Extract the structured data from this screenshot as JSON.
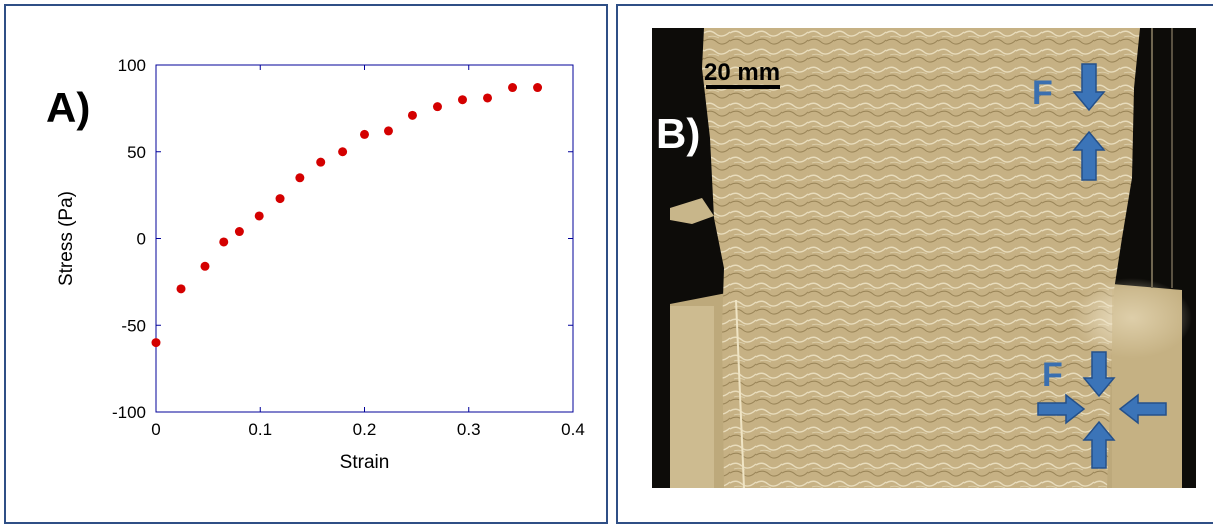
{
  "panel_a": {
    "label": "A)"
  },
  "panel_b": {
    "label": "B)",
    "scale_bar": "20 mm",
    "force_label_top": "F",
    "force_label_bottom": "F",
    "arrow_color": "#3b74b8",
    "label_color": "#3a6fb0"
  },
  "chart_data": {
    "type": "scatter",
    "xlabel": "Strain",
    "ylabel": "Stress (Pa)",
    "xlim": [
      0,
      0.4
    ],
    "ylim": [
      -100,
      100
    ],
    "xticks": [
      0,
      0.1,
      0.2,
      0.3,
      0.4
    ],
    "xtick_labels": [
      "0",
      "0.1",
      "0.2",
      "0.3",
      "0.4"
    ],
    "yticks": [
      -100,
      -50,
      0,
      50,
      100
    ],
    "ytick_labels": [
      "-100",
      "-50",
      "0",
      "50",
      "100"
    ],
    "grid": false,
    "marker_color": "#d40000",
    "axis_color": "#00009a",
    "series": [
      {
        "x": [
          0,
          0.024,
          0.047,
          0.065,
          0.08,
          0.099,
          0.119,
          0.138,
          0.158,
          0.179,
          0.2,
          0.223,
          0.246,
          0.27,
          0.294,
          0.318,
          0.342,
          0.366
        ],
        "y": [
          -60,
          -29,
          -16,
          -2,
          4,
          13,
          23,
          35,
          44,
          50,
          60,
          62,
          71,
          76,
          80,
          81,
          87,
          87
        ]
      }
    ]
  }
}
